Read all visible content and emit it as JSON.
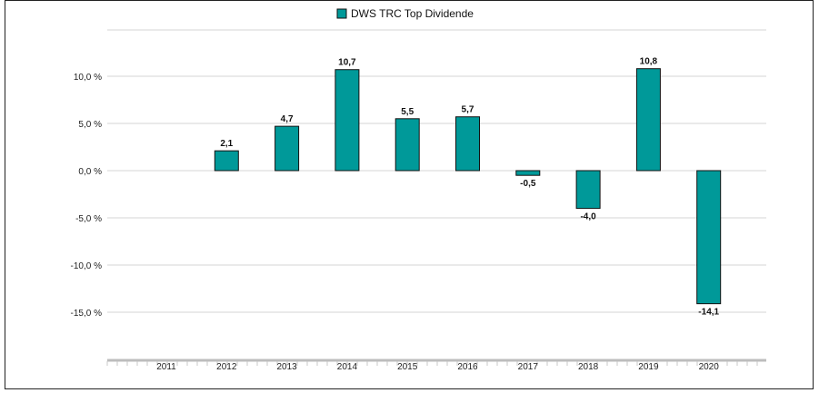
{
  "chart_data": {
    "type": "bar",
    "categories": [
      "2011",
      "2012",
      "2013",
      "2014",
      "2015",
      "2016",
      "2017",
      "2018",
      "2019",
      "2020"
    ],
    "series": [
      {
        "name": "DWS TRC Top Dividende",
        "values": [
          null,
          2.1,
          4.7,
          10.7,
          5.5,
          5.7,
          -0.5,
          -4.0,
          10.8,
          -14.1
        ],
        "labels": [
          "",
          "2,1",
          "4,7",
          "10,7",
          "5,5",
          "5,7",
          "-0,5",
          "-4,0",
          "10,8",
          "-14,1"
        ]
      }
    ],
    "ylim": [
      -20,
      15
    ],
    "yticks": [
      10,
      5,
      0,
      -5,
      -10,
      -15
    ],
    "ytick_labels": [
      "10,0 %",
      "5,0 %",
      "0,0 %",
      "-5,0 %",
      "-10,0 %",
      "-15,0 %"
    ],
    "grid": true,
    "legend": "top-center",
    "bar_color": "#009999"
  }
}
